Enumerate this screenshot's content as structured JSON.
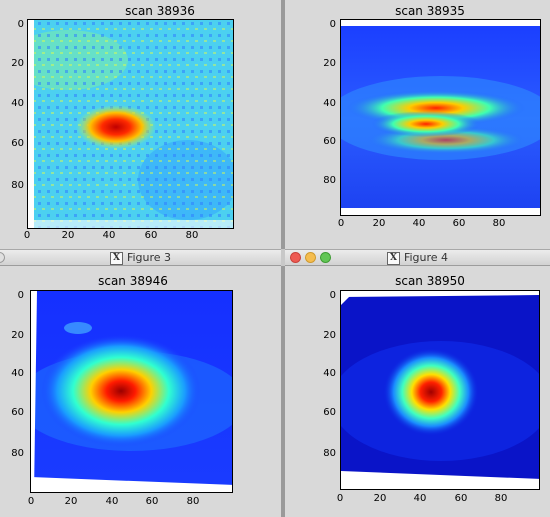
{
  "windows": [
    {
      "id": "tl",
      "plot_title": "scan 38936"
    },
    {
      "id": "tr",
      "plot_title": "scan 38935"
    },
    {
      "id": "bl",
      "window_title": "Figure 3",
      "plot_title": "scan 38946"
    },
    {
      "id": "br",
      "window_title": "Figure 4",
      "plot_title": "scan 38950"
    }
  ],
  "axes": {
    "y_ticks": [
      "0",
      "20",
      "40",
      "60",
      "80"
    ],
    "x_ticks": [
      "0",
      "20",
      "40",
      "60",
      "80"
    ]
  },
  "colors": {
    "window_close": "#ee5b53",
    "window_minimize": "#f5bd4f",
    "window_maximize": "#62c655",
    "colormap_low": "#00008f",
    "colormap_mid": "#00ffff",
    "colormap_high": "#800000"
  },
  "icons": {
    "x11": "X"
  }
}
